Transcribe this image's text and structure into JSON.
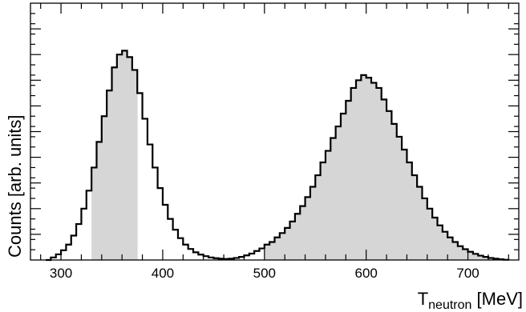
{
  "chart_data": {
    "type": "histogram",
    "xlabel_main": "T",
    "xlabel_sub": "neutron",
    "xlabel_unit": " [MeV]",
    "ylabel": "Counts [arb. units]",
    "xlim": [
      270,
      750
    ],
    "ylim": [
      0,
      1.0
    ],
    "x_ticks": [
      300,
      400,
      500,
      600,
      700
    ],
    "y_tick_labels_shown": false,
    "fill_color": "#d6d6d6",
    "line_color": "#000000",
    "bin_width": 5,
    "shaded_ranges": [
      [
        330,
        377
      ],
      [
        500,
        740
      ]
    ],
    "bins": [
      [
        285,
        290,
        0.0
      ],
      [
        290,
        295,
        0.01
      ],
      [
        295,
        300,
        0.022
      ],
      [
        300,
        305,
        0.038
      ],
      [
        305,
        310,
        0.06
      ],
      [
        310,
        315,
        0.095
      ],
      [
        315,
        320,
        0.14
      ],
      [
        320,
        325,
        0.2
      ],
      [
        325,
        330,
        0.27
      ],
      [
        330,
        335,
        0.36
      ],
      [
        335,
        340,
        0.46
      ],
      [
        340,
        345,
        0.56
      ],
      [
        345,
        350,
        0.66
      ],
      [
        350,
        355,
        0.75
      ],
      [
        355,
        360,
        0.8
      ],
      [
        360,
        365,
        0.815
      ],
      [
        365,
        370,
        0.79
      ],
      [
        370,
        375,
        0.74
      ],
      [
        375,
        380,
        0.65
      ],
      [
        380,
        385,
        0.55
      ],
      [
        385,
        390,
        0.45
      ],
      [
        390,
        395,
        0.36
      ],
      [
        395,
        400,
        0.28
      ],
      [
        400,
        405,
        0.215
      ],
      [
        405,
        410,
        0.16
      ],
      [
        410,
        415,
        0.118
      ],
      [
        415,
        420,
        0.085
      ],
      [
        420,
        425,
        0.06
      ],
      [
        425,
        430,
        0.043
      ],
      [
        430,
        435,
        0.03
      ],
      [
        435,
        440,
        0.021
      ],
      [
        440,
        445,
        0.015
      ],
      [
        445,
        450,
        0.01
      ],
      [
        450,
        455,
        0.007
      ],
      [
        455,
        460,
        0.005
      ],
      [
        460,
        465,
        0.004
      ],
      [
        465,
        470,
        0.005
      ],
      [
        470,
        475,
        0.008
      ],
      [
        475,
        480,
        0.012
      ],
      [
        480,
        485,
        0.018
      ],
      [
        485,
        490,
        0.025
      ],
      [
        490,
        495,
        0.035
      ],
      [
        495,
        500,
        0.045
      ],
      [
        500,
        505,
        0.06
      ],
      [
        505,
        510,
        0.07
      ],
      [
        510,
        515,
        0.088
      ],
      [
        515,
        520,
        0.105
      ],
      [
        520,
        525,
        0.125
      ],
      [
        525,
        530,
        0.15
      ],
      [
        530,
        535,
        0.18
      ],
      [
        535,
        540,
        0.21
      ],
      [
        540,
        545,
        0.245
      ],
      [
        545,
        550,
        0.285
      ],
      [
        550,
        555,
        0.33
      ],
      [
        555,
        560,
        0.38
      ],
      [
        560,
        565,
        0.425
      ],
      [
        565,
        570,
        0.475
      ],
      [
        570,
        575,
        0.52
      ],
      [
        575,
        580,
        0.57
      ],
      [
        580,
        585,
        0.62
      ],
      [
        585,
        590,
        0.67
      ],
      [
        590,
        595,
        0.7
      ],
      [
        595,
        600,
        0.72
      ],
      [
        600,
        605,
        0.71
      ],
      [
        605,
        610,
        0.69
      ],
      [
        610,
        615,
        0.67
      ],
      [
        615,
        620,
        0.625
      ],
      [
        620,
        625,
        0.58
      ],
      [
        625,
        630,
        0.53
      ],
      [
        630,
        635,
        0.48
      ],
      [
        635,
        640,
        0.43
      ],
      [
        640,
        645,
        0.38
      ],
      [
        645,
        650,
        0.33
      ],
      [
        650,
        655,
        0.285
      ],
      [
        655,
        660,
        0.24
      ],
      [
        660,
        665,
        0.2
      ],
      [
        665,
        670,
        0.165
      ],
      [
        670,
        675,
        0.135
      ],
      [
        675,
        680,
        0.11
      ],
      [
        680,
        685,
        0.088
      ],
      [
        685,
        690,
        0.07
      ],
      [
        690,
        695,
        0.054
      ],
      [
        695,
        700,
        0.042
      ],
      [
        700,
        705,
        0.032
      ],
      [
        705,
        710,
        0.024
      ],
      [
        710,
        715,
        0.017
      ],
      [
        715,
        720,
        0.012
      ],
      [
        720,
        725,
        0.008
      ],
      [
        725,
        730,
        0.005
      ],
      [
        730,
        735,
        0.003
      ],
      [
        735,
        740,
        0.001
      ]
    ]
  }
}
